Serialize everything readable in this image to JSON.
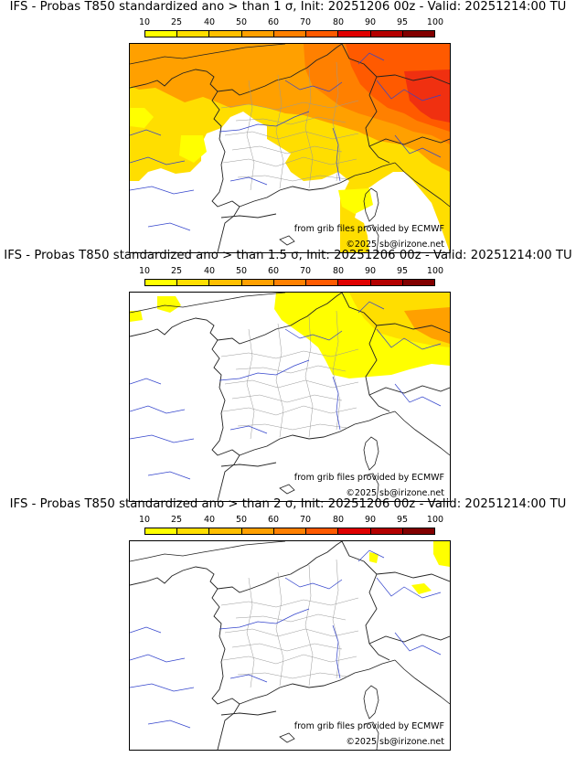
{
  "colorbar": {
    "labels": [
      "10",
      "25",
      "40",
      "50",
      "60",
      "70",
      "80",
      "90",
      "95",
      "100"
    ],
    "colors": [
      "#ffff00",
      "#ffde00",
      "#ffbf00",
      "#ffa000",
      "#ff8000",
      "#ff5a00",
      "#e00000",
      "#b40000",
      "#820000"
    ]
  },
  "credits": {
    "source": "from grib files provided by ECMWF",
    "copyright": "©2025 sb@irizone.net"
  },
  "panels": [
    {
      "title": "IFS - Probas T850  standardized ano > than 1 σ, Init: 20251206 00z - Valid: 20251214:00 TU"
    },
    {
      "title": "IFS - Probas T850  standardized ano > than 1.5 σ, Init: 20251206 00z - Valid: 20251214:00 TU"
    },
    {
      "title": "IFS - Probas T850  standardized ano > than 2 σ, Init: 20251206 00z - Valid: 20251214:00 TU"
    }
  ]
}
